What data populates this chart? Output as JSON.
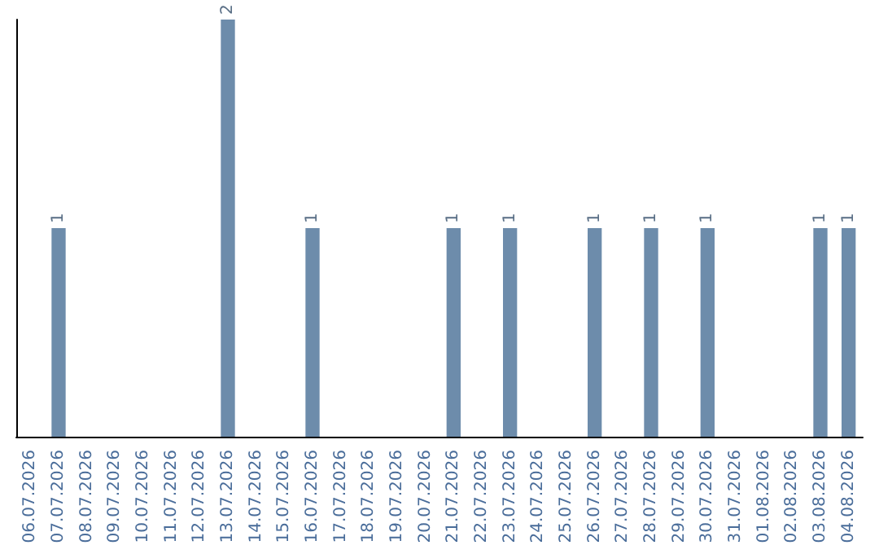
{
  "chart_data": {
    "type": "bar",
    "categories": [
      "06.07.2026",
      "07.07.2026",
      "08.07.2026",
      "09.07.2026",
      "10.07.2026",
      "11.07.2026",
      "12.07.2026",
      "13.07.2026",
      "14.07.2026",
      "15.07.2026",
      "16.07.2026",
      "17.07.2026",
      "18.07.2026",
      "19.07.2026",
      "20.07.2026",
      "21.07.2026",
      "22.07.2026",
      "23.07.2026",
      "24.07.2026",
      "25.07.2026",
      "26.07.2026",
      "27.07.2026",
      "28.07.2026",
      "29.07.2026",
      "30.07.2026",
      "31.07.2026",
      "01.08.2026",
      "02.08.2026",
      "03.08.2026",
      "04.08.2026"
    ],
    "values": [
      0,
      1,
      0,
      0,
      0,
      0,
      0,
      2,
      0,
      0,
      1,
      0,
      0,
      0,
      0,
      1,
      0,
      1,
      0,
      0,
      1,
      0,
      1,
      0,
      1,
      0,
      0,
      0,
      1,
      1
    ],
    "value_labels": [
      null,
      "1",
      null,
      null,
      null,
      null,
      null,
      "2",
      null,
      null,
      "1",
      null,
      null,
      null,
      null,
      "1",
      null,
      "1",
      null,
      null,
      "1",
      null,
      "1",
      null,
      "1",
      null,
      null,
      null,
      "1",
      "1"
    ],
    "color": "#6d8cab",
    "grid": false,
    "tick_labels": "x"
  }
}
